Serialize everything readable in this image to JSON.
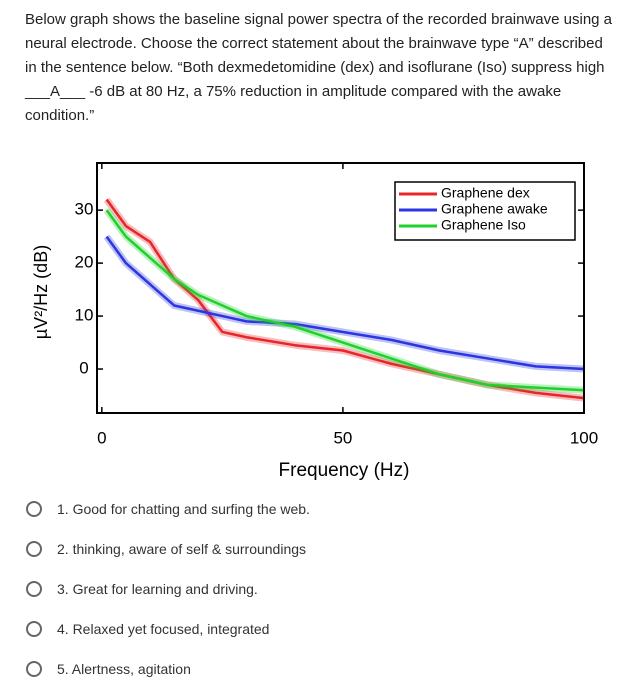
{
  "question": "Below graph shows the baseline signal power spectra of the recorded brainwave using a neural electrode. Choose the correct statement about the brainwave type “A” described in the sentence below. “Both dexmedetomidine (dex) and isoflurane (Iso) suppress high ___A___ -6 dB at 80 Hz, a 75% reduction in amplitude compared with the awake condition.”",
  "chart_data": {
    "type": "line",
    "x_label": "Frequency (Hz)",
    "y_label": "µV²/Hz (dB)",
    "x": [
      1,
      5,
      10,
      15,
      20,
      25,
      30,
      40,
      50,
      60,
      70,
      80,
      90,
      100
    ],
    "series": [
      {
        "name": "Graphene dex",
        "color": "#e8262a",
        "values": [
          32,
          27,
          24,
          17,
          13,
          7,
          6,
          4.5,
          3.5,
          1,
          -1,
          -3,
          -4.5,
          -5.5
        ]
      },
      {
        "name": "Graphene awake",
        "color": "#2b35e0",
        "values": [
          25,
          20,
          16,
          12,
          11,
          10,
          9,
          8.5,
          7,
          5.5,
          3.5,
          2,
          0.5,
          0
        ]
      },
      {
        "name": "Graphene Iso",
        "color": "#1fd12a",
        "values": [
          30,
          25,
          21,
          17,
          14,
          12,
          10,
          8,
          5,
          2,
          -1,
          -3,
          -3.5,
          -4
        ]
      }
    ],
    "xlim": [
      -1,
      100
    ],
    "ylim": [
      -8.3,
      38.9
    ],
    "xticks": [
      0,
      50,
      100
    ],
    "yticks": [
      0,
      10,
      20,
      30
    ],
    "legend": "upper right"
  },
  "options": [
    "1. Good for chatting and surfing the web.",
    "2. thinking, aware of self & surroundings",
    "3. Great for learning and driving.",
    "4. Relaxed yet focused, integrated",
    "5. Alertness, agitation"
  ]
}
